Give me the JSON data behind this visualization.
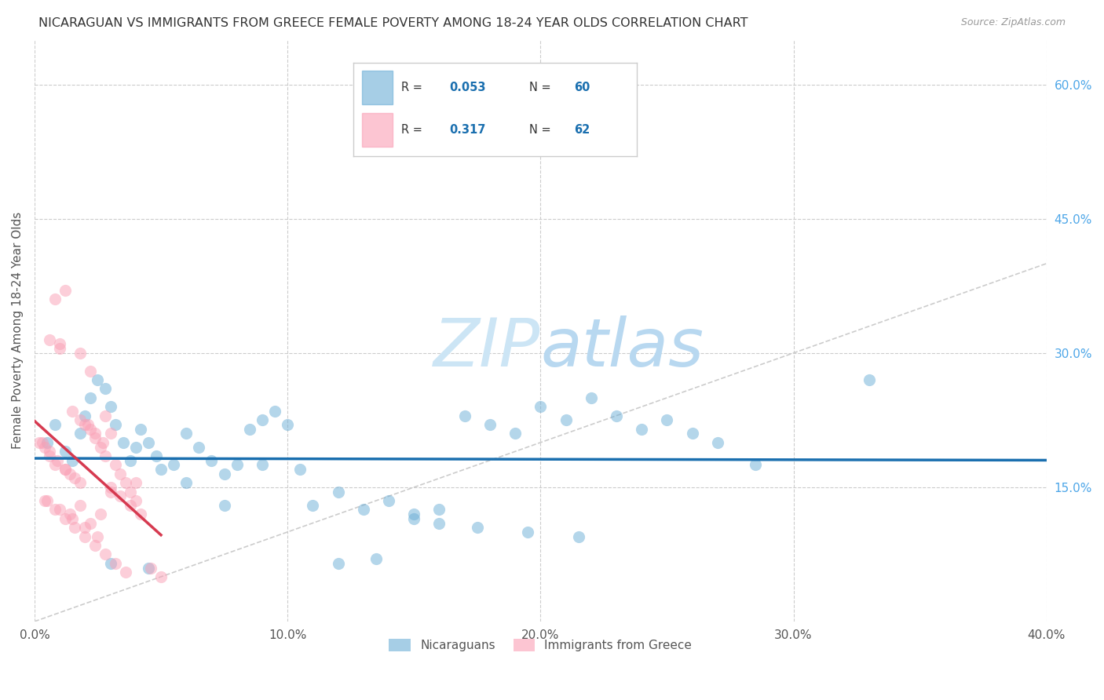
{
  "title": "NICARAGUAN VS IMMIGRANTS FROM GREECE FEMALE POVERTY AMONG 18-24 YEAR OLDS CORRELATION CHART",
  "source": "Source: ZipAtlas.com",
  "ylabel": "Female Poverty Among 18-24 Year Olds",
  "xlim": [
    0.0,
    0.4
  ],
  "ylim": [
    0.0,
    0.65
  ],
  "xtick_labels": [
    "0.0%",
    "10.0%",
    "20.0%",
    "30.0%",
    "40.0%"
  ],
  "xtick_values": [
    0.0,
    0.1,
    0.2,
    0.3,
    0.4
  ],
  "ytick_right_labels": [
    "15.0%",
    "30.0%",
    "45.0%",
    "60.0%"
  ],
  "ytick_right_values": [
    0.15,
    0.3,
    0.45,
    0.6
  ],
  "blue_R": 0.053,
  "blue_N": 60,
  "pink_R": 0.317,
  "pink_N": 62,
  "blue_color": "#6baed6",
  "pink_color": "#fa9fb5",
  "blue_line_color": "#1a6faf",
  "pink_line_color": "#d63a50",
  "diagonal_color": "#cccccc",
  "watermark_color": "#cce5f5",
  "legend_R_color": "#333333",
  "legend_val_color": "#1a6faf",
  "blue_x": [
    0.005,
    0.008,
    0.012,
    0.015,
    0.018,
    0.02,
    0.022,
    0.025,
    0.028,
    0.03,
    0.032,
    0.035,
    0.038,
    0.04,
    0.042,
    0.045,
    0.048,
    0.05,
    0.055,
    0.06,
    0.065,
    0.07,
    0.075,
    0.08,
    0.085,
    0.09,
    0.095,
    0.1,
    0.11,
    0.12,
    0.13,
    0.14,
    0.15,
    0.16,
    0.17,
    0.18,
    0.19,
    0.2,
    0.21,
    0.22,
    0.23,
    0.24,
    0.25,
    0.26,
    0.27,
    0.15,
    0.16,
    0.175,
    0.195,
    0.215,
    0.03,
    0.045,
    0.06,
    0.075,
    0.09,
    0.105,
    0.12,
    0.135,
    0.33,
    0.285
  ],
  "blue_y": [
    0.2,
    0.22,
    0.19,
    0.18,
    0.21,
    0.23,
    0.25,
    0.27,
    0.26,
    0.24,
    0.22,
    0.2,
    0.18,
    0.195,
    0.215,
    0.2,
    0.185,
    0.17,
    0.175,
    0.21,
    0.195,
    0.18,
    0.165,
    0.175,
    0.215,
    0.225,
    0.235,
    0.22,
    0.13,
    0.145,
    0.125,
    0.135,
    0.12,
    0.125,
    0.23,
    0.22,
    0.21,
    0.24,
    0.225,
    0.25,
    0.23,
    0.215,
    0.225,
    0.21,
    0.2,
    0.115,
    0.11,
    0.105,
    0.1,
    0.095,
    0.065,
    0.06,
    0.155,
    0.13,
    0.175,
    0.17,
    0.065,
    0.07,
    0.27,
    0.175
  ],
  "pink_x": [
    0.002,
    0.004,
    0.006,
    0.008,
    0.01,
    0.012,
    0.014,
    0.016,
    0.018,
    0.02,
    0.022,
    0.024,
    0.026,
    0.028,
    0.03,
    0.032,
    0.034,
    0.036,
    0.038,
    0.04,
    0.005,
    0.01,
    0.015,
    0.02,
    0.025,
    0.008,
    0.012,
    0.018,
    0.022,
    0.028,
    0.003,
    0.006,
    0.009,
    0.012,
    0.015,
    0.018,
    0.021,
    0.024,
    0.027,
    0.03,
    0.004,
    0.008,
    0.012,
    0.016,
    0.02,
    0.024,
    0.028,
    0.032,
    0.036,
    0.04,
    0.006,
    0.01,
    0.014,
    0.018,
    0.022,
    0.026,
    0.03,
    0.034,
    0.038,
    0.042,
    0.046,
    0.05
  ],
  "pink_y": [
    0.2,
    0.195,
    0.185,
    0.175,
    0.31,
    0.17,
    0.165,
    0.16,
    0.155,
    0.22,
    0.215,
    0.205,
    0.195,
    0.185,
    0.21,
    0.175,
    0.165,
    0.155,
    0.145,
    0.155,
    0.135,
    0.125,
    0.115,
    0.105,
    0.095,
    0.36,
    0.37,
    0.3,
    0.28,
    0.23,
    0.2,
    0.19,
    0.18,
    0.17,
    0.235,
    0.225,
    0.22,
    0.21,
    0.2,
    0.145,
    0.135,
    0.125,
    0.115,
    0.105,
    0.095,
    0.085,
    0.075,
    0.065,
    0.055,
    0.135,
    0.315,
    0.305,
    0.12,
    0.13,
    0.11,
    0.12,
    0.15,
    0.14,
    0.13,
    0.12,
    0.06,
    0.05
  ]
}
